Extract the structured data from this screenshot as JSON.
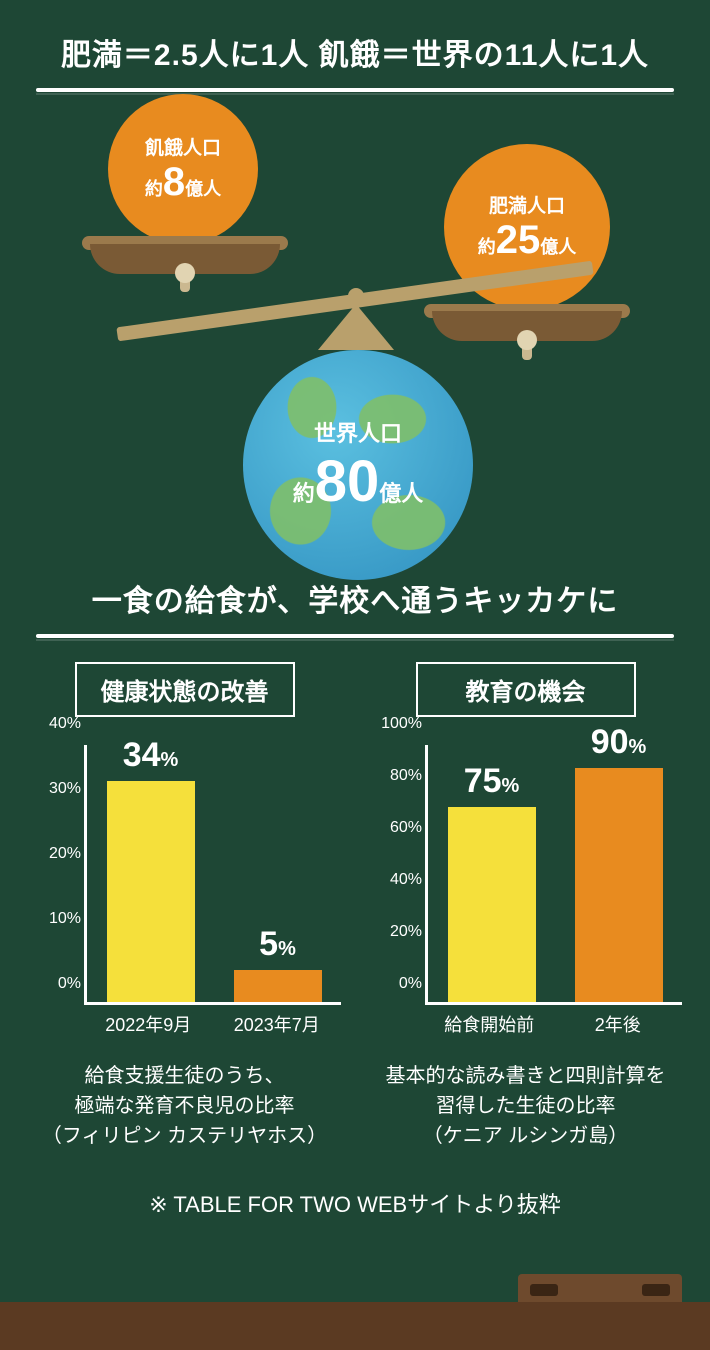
{
  "colors": {
    "bg": "#1e4735",
    "orange": "#e88b1f",
    "yellow": "#f5e03b",
    "wood": "#b9a06c",
    "dark_wood": "#7a5a35",
    "white": "#ffffff"
  },
  "header": {
    "title": "肥満＝2.5人に1人 飢餓＝世界の11人に1人"
  },
  "scale": {
    "left_ball": {
      "line1": "飢餓人口",
      "prefix": "約",
      "value": "8",
      "suffix": "億人"
    },
    "right_ball": {
      "line1": "肥満人口",
      "prefix": "約",
      "value": "25",
      "suffix": "億人"
    },
    "earth": {
      "line1": "世界人口",
      "prefix": "約",
      "value": "80",
      "suffix": "億人"
    }
  },
  "section2": {
    "title": "一食の給食が、学校へ通うキッカケに",
    "chart1": {
      "type": "bar",
      "tag": "健康状態の改善",
      "ylim": [
        0,
        40
      ],
      "ytick_step": 10,
      "bars": [
        {
          "label": "2022年9月",
          "value": 34,
          "color": "#f5e03b"
        },
        {
          "label": "2023年7月",
          "value": 5,
          "color": "#e88b1f"
        }
      ],
      "caption": "給食支援生徒のうち、\n極端な発育不良児の比率\n（フィリピン カステリヤホス）"
    },
    "chart2": {
      "type": "bar",
      "tag": "教育の機会",
      "ylim": [
        0,
        100
      ],
      "ytick_step": 20,
      "bars": [
        {
          "label": "給食開始前",
          "value": 75,
          "color": "#f5e03b"
        },
        {
          "label": "2年後",
          "value": 90,
          "color": "#e88b1f"
        }
      ],
      "caption": "基本的な読み書きと四則計算を\n習得した生徒の比率\n（ケニア ルシンガ島）"
    },
    "footnote": "※ TABLE FOR TWO WEBサイトより抜粋"
  }
}
